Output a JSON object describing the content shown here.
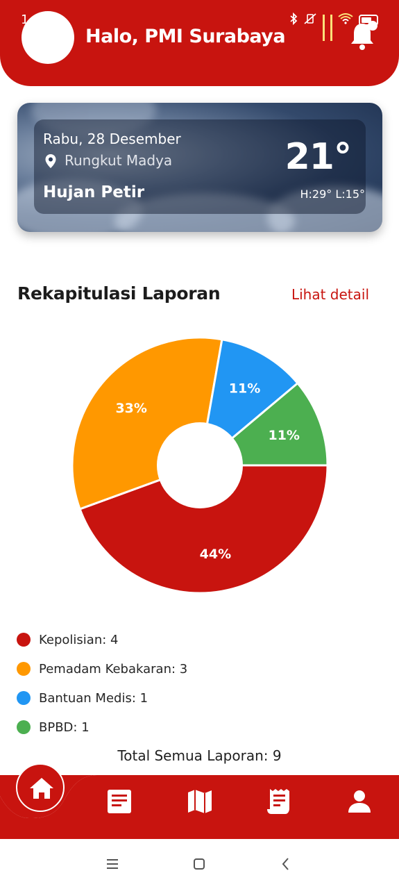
{
  "status_bar": {
    "time": "1"
  },
  "header": {
    "greeting": "Halo, PMI Surabaya"
  },
  "weather": {
    "date": "Rabu, 28 Desember",
    "location": "Rungkut Madya",
    "condition": "Hujan Petir",
    "temperature": "21°",
    "high_low": "H:29° L:15°"
  },
  "section": {
    "title": "Rekapitulasi Laporan",
    "detail_link": "Lihat detail"
  },
  "chart_data": {
    "type": "pie",
    "categories": [
      "Kepolisian",
      "Pemadam Kebakaran",
      "Bantuan Medis",
      "BPBD"
    ],
    "values": [
      4,
      3,
      1,
      1
    ],
    "labels": [
      "44%",
      "33%",
      "11%",
      "11%"
    ],
    "colors": [
      "#c8140f",
      "#ff9800",
      "#2196f3",
      "#4caf50"
    ]
  },
  "legend": [
    {
      "label": "Kepolisian: 4",
      "color": "#c8140f"
    },
    {
      "label": "Pemadam Kebakaran: 3",
      "color": "#ff9800"
    },
    {
      "label": "Bantuan Medis: 1",
      "color": "#2196f3"
    },
    {
      "label": "BPBD: 1",
      "color": "#4caf50"
    }
  ],
  "total": "Total Semua Laporan: 9",
  "nav": {
    "items": [
      "home-icon",
      "document-icon",
      "map-icon",
      "receipt-icon",
      "person-icon"
    ],
    "accent": "#c8140f"
  }
}
